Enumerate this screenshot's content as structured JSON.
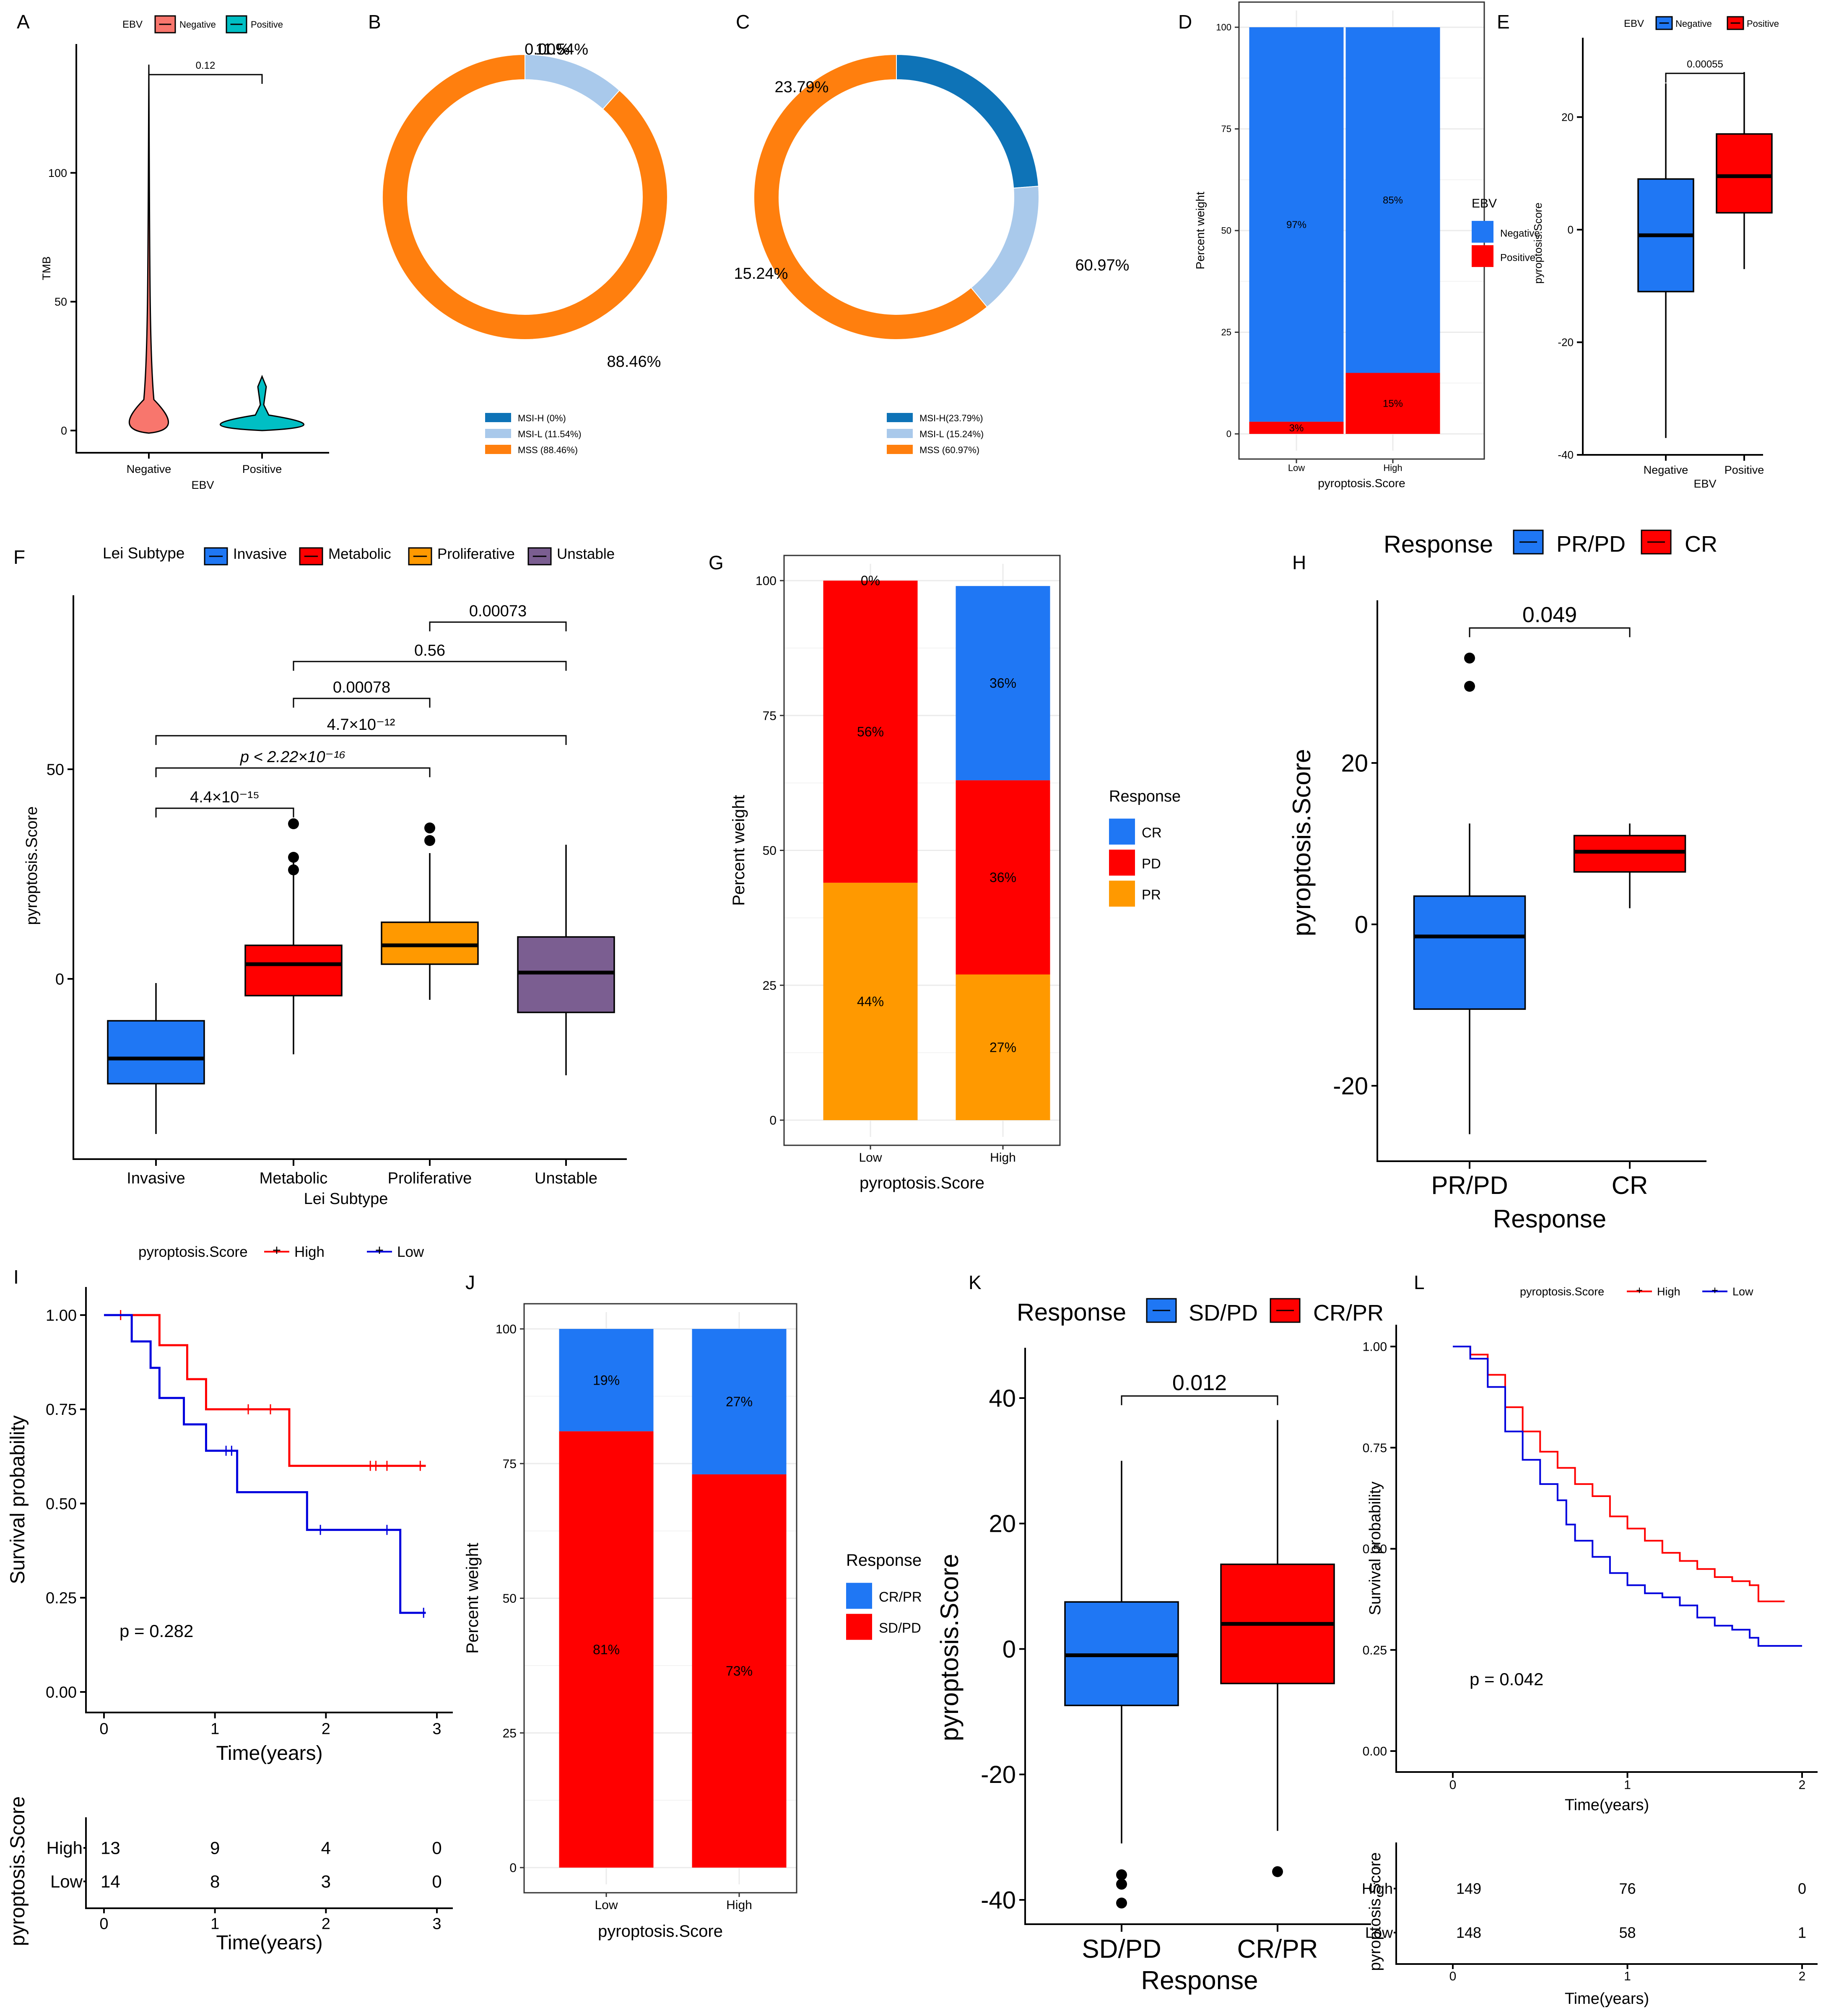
{
  "colors": {
    "blue": "#1f77f4",
    "red": "#ff0000",
    "orange": "#ff9900",
    "purple": "#7b5e91",
    "salmon": "#f8766d",
    "teal": "#00bfc4",
    "ring_dark": "#0e73b7",
    "ring_light": "#a9c9eb",
    "ring_orange": "#ff7f0e",
    "km_blue": "#0000dd"
  },
  "chart_data": [
    {
      "panel": "A",
      "type": "violin",
      "legend_title": "EBV",
      "legend_labels": [
        "Negative",
        "Positive"
      ],
      "categories": [
        "Negative",
        "Positive"
      ],
      "xlabel": "EBV",
      "ylabel": "TMB",
      "ylim": [
        0,
        150
      ],
      "yticks": [
        "0",
        "50",
        "100"
      ],
      "pvalue": "0.12"
    },
    {
      "panel": "B",
      "type": "pie",
      "slices": [
        {
          "label": "MSI-H (0%)",
          "value": 0.0,
          "pct": "0.00%"
        },
        {
          "label": "MSI-L (11.54%)",
          "value": 11.54,
          "pct": "11.54%"
        },
        {
          "label": "MSS (88.46%)",
          "value": 88.46,
          "pct": "88.46%"
        }
      ]
    },
    {
      "panel": "C",
      "type": "pie",
      "slices": [
        {
          "label": "MSI-H(23.79%)",
          "value": 23.79,
          "pct": "23.79%"
        },
        {
          "label": "MSI-L (15.24%)",
          "value": 15.24,
          "pct": "15.24%"
        },
        {
          "label": "MSS (60.97%)",
          "value": 60.97,
          "pct": "60.97%"
        }
      ]
    },
    {
      "panel": "D",
      "type": "bar",
      "categories": [
        "Low",
        "High"
      ],
      "series": [
        {
          "name": "Positive",
          "values": [
            3,
            15
          ],
          "labels": [
            "3%",
            "15%"
          ]
        },
        {
          "name": "Negative",
          "values": [
            97,
            85
          ],
          "labels": [
            "97%",
            "85%"
          ]
        }
      ],
      "legend_title": "EBV",
      "legend_labels": [
        "Negative",
        "Positive"
      ],
      "xlabel": "pyroptosis.Score",
      "ylabel": "Percent weight",
      "ylim": [
        0,
        100
      ],
      "yticks": [
        "0",
        "25",
        "50",
        "75",
        "100"
      ]
    },
    {
      "panel": "E",
      "type": "box",
      "legend_title": "EBV",
      "legend_labels": [
        "Negative",
        "Positive"
      ],
      "categories": [
        "Negative",
        "Positive"
      ],
      "boxes": [
        {
          "min": -37,
          "q1": -11,
          "median": -1,
          "q3": 9,
          "max": 26
        },
        {
          "min": -7,
          "q1": 3,
          "median": 9.5,
          "q3": 17,
          "max": 28
        }
      ],
      "xlabel": "EBV",
      "ylabel": "pyroptosis.Score",
      "ylim": [
        -40,
        30
      ],
      "yticks": [
        "-40",
        "-20",
        "0",
        "20"
      ],
      "pvalue": "0.00055"
    },
    {
      "panel": "F",
      "type": "box",
      "legend_title": "Lei Subtype",
      "legend_labels": [
        "Invasive",
        "Metabolic",
        "Proliferative",
        "Unstable"
      ],
      "categories": [
        "Invasive",
        "Metabolic",
        "Proliferative",
        "Unstable"
      ],
      "boxes": [
        {
          "min": -37,
          "q1": -25,
          "median": -19,
          "q3": -10,
          "max": -1
        },
        {
          "min": -18,
          "q1": -4,
          "median": 3.5,
          "q3": 8,
          "max": 29,
          "outliers": [
            37,
            29,
            26
          ]
        },
        {
          "min": -5,
          "q1": 3.5,
          "median": 8,
          "q3": 13.5,
          "max": 30,
          "outliers": [
            36,
            33
          ]
        },
        {
          "min": -23,
          "q1": -8,
          "median": 1.5,
          "q3": 10,
          "max": 32
        }
      ],
      "xlabel": "Lei Subtype",
      "ylabel": "pyroptosis.Score",
      "ylim": [
        -45,
        90
      ],
      "yticks": [
        "0",
        "50"
      ],
      "comparisons": [
        {
          "from": "Invasive",
          "to": "Metabolic",
          "label": "4.4×10⁻¹⁵"
        },
        {
          "from": "Invasive",
          "to": "Proliferative",
          "label": "p < 2.22×10⁻¹⁶"
        },
        {
          "from": "Invasive",
          "to": "Unstable",
          "label": "4.7×10⁻¹²"
        },
        {
          "from": "Metabolic",
          "to": "Proliferative",
          "label": "0.00078"
        },
        {
          "from": "Metabolic",
          "to": "Unstable",
          "label": "0.56"
        },
        {
          "from": "Proliferative",
          "to": "Unstable",
          "label": "0.00073"
        }
      ]
    },
    {
      "panel": "G",
      "type": "bar",
      "categories": [
        "Low",
        "High"
      ],
      "series": [
        {
          "name": "PR",
          "values": [
            44,
            27
          ],
          "labels": [
            "44%",
            "27%"
          ]
        },
        {
          "name": "PD",
          "values": [
            56,
            36
          ],
          "labels": [
            "56%",
            "36%"
          ]
        },
        {
          "name": "CR",
          "values": [
            0,
            36
          ],
          "labels": [
            "0%",
            "36%"
          ]
        }
      ],
      "legend_title": "Response",
      "legend_labels": [
        "CR",
        "PD",
        "PR"
      ],
      "xlabel": "pyroptosis.Score",
      "ylabel": "Percent weight",
      "ylim": [
        0,
        100
      ],
      "yticks": [
        "0",
        "25",
        "50",
        "75",
        "100"
      ]
    },
    {
      "panel": "H",
      "type": "box",
      "legend_title": "Response",
      "legend_labels": [
        "PR/PD",
        "CR"
      ],
      "categories": [
        "PR/PD",
        "CR"
      ],
      "boxes": [
        {
          "min": -26,
          "q1": -10.5,
          "median": -1.5,
          "q3": 3.5,
          "max": 12.5,
          "outliers": [
            33,
            29.5
          ]
        },
        {
          "min": 2,
          "q1": 6.5,
          "median": 9,
          "q3": 11,
          "max": 12.5
        }
      ],
      "xlabel": "Response",
      "ylabel": "pyroptosis.Score",
      "ylim": [
        -30,
        40
      ],
      "yticks": [
        "-20",
        "0",
        "20"
      ],
      "pvalue": "0.049"
    },
    {
      "panel": "I",
      "type": "line",
      "subtype": "kaplan-meier",
      "legend_title": "pyroptosis.Score",
      "legend_labels": [
        "High",
        "Low"
      ],
      "series": [
        {
          "name": "High",
          "steps": [
            [
              0,
              1.0
            ],
            [
              0.5,
              1.0
            ],
            [
              0.5,
              0.92
            ],
            [
              0.75,
              0.92
            ],
            [
              0.75,
              0.83
            ],
            [
              0.92,
              0.83
            ],
            [
              0.92,
              0.75
            ],
            [
              1.67,
              0.75
            ],
            [
              1.67,
              0.6
            ],
            [
              2.9,
              0.6
            ]
          ],
          "censor": [
            [
              0.15,
              1.0
            ],
            [
              1.3,
              0.75
            ],
            [
              1.5,
              0.75
            ],
            [
              2.4,
              0.6
            ],
            [
              2.45,
              0.6
            ],
            [
              2.55,
              0.6
            ],
            [
              2.85,
              0.6
            ]
          ]
        },
        {
          "name": "Low",
          "steps": [
            [
              0,
              1.0
            ],
            [
              0.25,
              1.0
            ],
            [
              0.25,
              0.93
            ],
            [
              0.42,
              0.93
            ],
            [
              0.42,
              0.86
            ],
            [
              0.5,
              0.86
            ],
            [
              0.5,
              0.78
            ],
            [
              0.72,
              0.78
            ],
            [
              0.72,
              0.71
            ],
            [
              0.92,
              0.71
            ],
            [
              0.92,
              0.64
            ],
            [
              1.2,
              0.64
            ],
            [
              1.2,
              0.53
            ],
            [
              1.83,
              0.53
            ],
            [
              1.83,
              0.43
            ],
            [
              2.67,
              0.43
            ],
            [
              2.67,
              0.21
            ],
            [
              2.9,
              0.21
            ]
          ],
          "censor": [
            [
              1.1,
              0.64
            ],
            [
              1.15,
              0.64
            ],
            [
              1.95,
              0.43
            ],
            [
              2.55,
              0.43
            ],
            [
              2.88,
              0.21
            ]
          ]
        }
      ],
      "xlabel": "Time(years)",
      "ylabel": "Survival probability",
      "xlim": [
        0,
        3
      ],
      "ylim": [
        0,
        1
      ],
      "xticks": [
        "0",
        "1",
        "2",
        "3"
      ],
      "yticks": [
        "0.00",
        "0.25",
        "0.50",
        "0.75",
        "1.00"
      ],
      "pvalue": "p = 0.282",
      "risk_table": {
        "ylabel": "pyroptosis.Score",
        "xlabel": "Time(years)",
        "rows": [
          {
            "group": "High",
            "counts": [
              "13",
              "9",
              "4",
              "0"
            ]
          },
          {
            "group": "Low",
            "counts": [
              "14",
              "8",
              "3",
              "0"
            ]
          }
        ]
      }
    },
    {
      "panel": "J",
      "type": "bar",
      "categories": [
        "Low",
        "High"
      ],
      "series": [
        {
          "name": "SD/PD",
          "values": [
            81,
            73
          ],
          "labels": [
            "81%",
            "73%"
          ]
        },
        {
          "name": "CR/PR",
          "values": [
            19,
            27
          ],
          "labels": [
            "19%",
            "27%"
          ]
        }
      ],
      "legend_title": "Response",
      "legend_labels": [
        "CR/PR",
        "SD/PD"
      ],
      "xlabel": "pyroptosis.Score",
      "ylabel": "Percent weight",
      "ylim": [
        0,
        100
      ],
      "yticks": [
        "0",
        "25",
        "50",
        "75",
        "100"
      ]
    },
    {
      "panel": "K",
      "type": "box",
      "legend_title": "Response",
      "legend_labels": [
        "SD/PD",
        "CR/PR"
      ],
      "categories": [
        "SD/PD",
        "CR/PR"
      ],
      "boxes": [
        {
          "min": -31,
          "q1": -9,
          "median": -1,
          "q3": 7.5,
          "max": 30,
          "outliers": [
            -36,
            -37.5,
            -40.5
          ]
        },
        {
          "min": -29,
          "q1": -5.5,
          "median": 4,
          "q3": 13.5,
          "max": 36.5,
          "outliers": [
            -35.5
          ]
        }
      ],
      "xlabel": "Response",
      "ylabel": "pyroptosis.Score",
      "ylim": [
        -42,
        48
      ],
      "yticks": [
        "-40",
        "-20",
        "0",
        "20",
        "40"
      ],
      "pvalue": "0.012"
    },
    {
      "panel": "L",
      "type": "line",
      "subtype": "kaplan-meier",
      "legend_title": "pyroptosis.Score",
      "legend_labels": [
        "High",
        "Low"
      ],
      "series": [
        {
          "name": "High",
          "curve": [
            [
              0,
              1.0
            ],
            [
              0.1,
              0.98
            ],
            [
              0.2,
              0.93
            ],
            [
              0.3,
              0.85
            ],
            [
              0.4,
              0.79
            ],
            [
              0.5,
              0.74
            ],
            [
              0.6,
              0.7
            ],
            [
              0.7,
              0.66
            ],
            [
              0.8,
              0.63
            ],
            [
              0.9,
              0.58
            ],
            [
              1.0,
              0.55
            ],
            [
              1.1,
              0.52
            ],
            [
              1.2,
              0.49
            ],
            [
              1.3,
              0.47
            ],
            [
              1.4,
              0.45
            ],
            [
              1.5,
              0.43
            ],
            [
              1.6,
              0.42
            ],
            [
              1.7,
              0.41
            ],
            [
              1.75,
              0.37
            ],
            [
              1.9,
              0.37
            ]
          ]
        },
        {
          "name": "Low",
          "curve": [
            [
              0,
              1.0
            ],
            [
              0.1,
              0.97
            ],
            [
              0.2,
              0.9
            ],
            [
              0.3,
              0.79
            ],
            [
              0.4,
              0.72
            ],
            [
              0.5,
              0.66
            ],
            [
              0.6,
              0.62
            ],
            [
              0.65,
              0.56
            ],
            [
              0.7,
              0.52
            ],
            [
              0.8,
              0.48
            ],
            [
              0.9,
              0.44
            ],
            [
              1.0,
              0.41
            ],
            [
              1.1,
              0.39
            ],
            [
              1.2,
              0.38
            ],
            [
              1.3,
              0.36
            ],
            [
              1.4,
              0.33
            ],
            [
              1.5,
              0.31
            ],
            [
              1.6,
              0.3
            ],
            [
              1.7,
              0.28
            ],
            [
              1.75,
              0.26
            ],
            [
              2.0,
              0.26
            ]
          ]
        }
      ],
      "xlabel": "Time(years)",
      "ylabel": "Survival probability",
      "xlim": [
        0,
        2
      ],
      "ylim": [
        0,
        1
      ],
      "xticks": [
        "0",
        "1",
        "2"
      ],
      "yticks": [
        "0.00",
        "0.25",
        "0.50",
        "0.75",
        "1.00"
      ],
      "pvalue": "p = 0.042",
      "risk_table": {
        "ylabel": "pyroptosis.Score",
        "xlabel": "Time(years)",
        "rows": [
          {
            "group": "High",
            "counts": [
              "149",
              "76",
              "0"
            ]
          },
          {
            "group": "Low",
            "counts": [
              "148",
              "58",
              "1"
            ]
          }
        ]
      }
    }
  ]
}
